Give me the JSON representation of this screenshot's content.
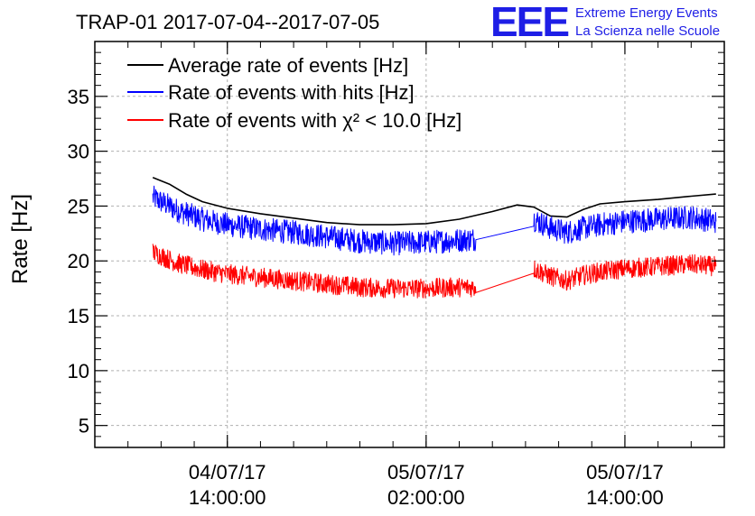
{
  "logo": {
    "mark": "EEE",
    "line1": "Extreme Energy Events",
    "line2": "La Scienza nelle Scuole",
    "color": "#1e1ee6"
  },
  "chart_data": {
    "type": "line",
    "title": "TRAP-01 2017-07-04--2017-07-05",
    "xlabel": "",
    "ylabel": "Rate [Hz]",
    "xlim": [
      "2017-07-04 06:00",
      "2017-07-05 20:00"
    ],
    "ylim": [
      3,
      40
    ],
    "yticks": [
      5,
      10,
      15,
      20,
      25,
      30,
      35
    ],
    "xticks": [
      {
        "x": "2017-07-04 14:00",
        "line1": "04/07/17",
        "line2": "14:00:00"
      },
      {
        "x": "2017-07-05 02:00",
        "line1": "05/07/17",
        "line2": "02:00:00"
      },
      {
        "x": "2017-07-05 14:00",
        "line1": "05/07/17",
        "line2": "14:00:00"
      }
    ],
    "grid": true,
    "legend_position": "top-left",
    "series": [
      {
        "name": "Average rate of events [Hz]",
        "color": "#000000",
        "noise": 0,
        "x": [
          "2017-07-04 09:30",
          "2017-07-04 10:30",
          "2017-07-04 11:30",
          "2017-07-04 12:30",
          "2017-07-04 14:00",
          "2017-07-04 16:00",
          "2017-07-04 18:00",
          "2017-07-04 20:00",
          "2017-07-04 22:00",
          "2017-07-05 00:00",
          "2017-07-05 02:00",
          "2017-07-05 04:00",
          "2017-07-05 06:00",
          "2017-07-05 07:30",
          "2017-07-05 08:30",
          "2017-07-05 09:30",
          "2017-07-05 10:30",
          "2017-07-05 11:30",
          "2017-07-05 12:30",
          "2017-07-05 14:00",
          "2017-07-05 16:00",
          "2017-07-05 18:00",
          "2017-07-05 19:30"
        ],
        "values": [
          27.6,
          27.0,
          26.1,
          25.4,
          24.8,
          24.3,
          23.9,
          23.5,
          23.3,
          23.3,
          23.4,
          23.8,
          24.5,
          25.1,
          24.9,
          24.1,
          24.0,
          24.7,
          25.2,
          25.4,
          25.6,
          25.9,
          26.1
        ]
      },
      {
        "name": "Rate of events with hits [Hz]",
        "color": "#0000ff",
        "noise": 1.1,
        "x": [
          "2017-07-04 09:30",
          "2017-07-04 11:00",
          "2017-07-04 12:30",
          "2017-07-04 14:00",
          "2017-07-04 16:00",
          "2017-07-04 18:00",
          "2017-07-04 20:00",
          "2017-07-04 22:00",
          "2017-07-05 00:00",
          "2017-07-05 02:00",
          "2017-07-05 04:00",
          "2017-07-05 05:00",
          "2017-07-05 08:30",
          "2017-07-05 09:30",
          "2017-07-05 10:30",
          "2017-07-05 11:30",
          "2017-07-05 12:30",
          "2017-07-05 14:00",
          "2017-07-05 16:00",
          "2017-07-05 18:00",
          "2017-07-05 19:30"
        ],
        "values": [
          25.8,
          24.6,
          23.8,
          23.3,
          22.9,
          22.6,
          22.2,
          21.8,
          21.6,
          21.7,
          21.9,
          22.0,
          23.8,
          23.0,
          22.6,
          23.0,
          23.3,
          23.6,
          23.8,
          24.0,
          23.6
        ]
      },
      {
        "name": "Rate of events with χ² < 10.0 [Hz]",
        "color": "#ff0000",
        "noise": 0.9,
        "x": [
          "2017-07-04 09:30",
          "2017-07-04 11:00",
          "2017-07-04 12:30",
          "2017-07-04 14:00",
          "2017-07-04 16:00",
          "2017-07-04 18:00",
          "2017-07-04 20:00",
          "2017-07-04 22:00",
          "2017-07-05 00:00",
          "2017-07-05 02:00",
          "2017-07-05 04:00",
          "2017-07-05 05:00",
          "2017-07-05 08:30",
          "2017-07-05 09:30",
          "2017-07-05 10:30",
          "2017-07-05 11:30",
          "2017-07-05 12:30",
          "2017-07-05 14:00",
          "2017-07-05 16:00",
          "2017-07-05 18:00",
          "2017-07-05 19:30"
        ],
        "values": [
          20.8,
          19.8,
          19.2,
          18.8,
          18.5,
          18.2,
          17.9,
          17.6,
          17.5,
          17.5,
          17.6,
          17.6,
          19.3,
          18.6,
          18.2,
          18.7,
          19.0,
          19.3,
          19.5,
          19.7,
          19.5
        ]
      }
    ]
  }
}
